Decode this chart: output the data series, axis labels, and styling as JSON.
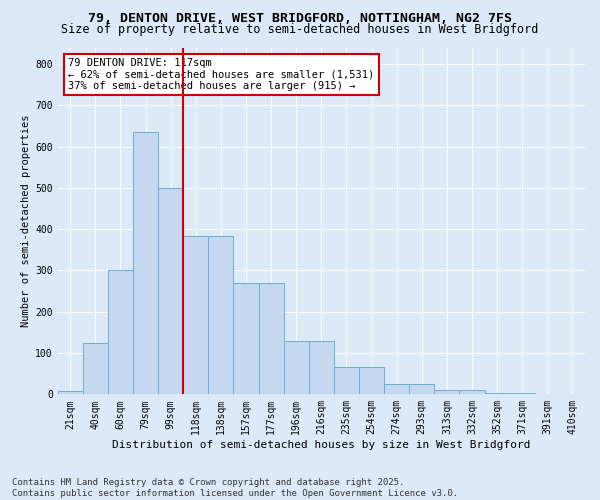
{
  "title_line1": "79, DENTON DRIVE, WEST BRIDGFORD, NOTTINGHAM, NG2 7FS",
  "title_line2": "Size of property relative to semi-detached houses in West Bridgford",
  "xlabel": "Distribution of semi-detached houses by size in West Bridgford",
  "ylabel": "Number of semi-detached properties",
  "categories": [
    "21sqm",
    "40sqm",
    "60sqm",
    "79sqm",
    "99sqm",
    "118sqm",
    "138sqm",
    "157sqm",
    "177sqm",
    "196sqm",
    "216sqm",
    "235sqm",
    "254sqm",
    "274sqm",
    "293sqm",
    "313sqm",
    "332sqm",
    "352sqm",
    "371sqm",
    "391sqm",
    "410sqm"
  ],
  "values": [
    8,
    125,
    300,
    635,
    500,
    383,
    383,
    270,
    270,
    130,
    130,
    65,
    65,
    25,
    25,
    10,
    10,
    3,
    3,
    1,
    1
  ],
  "bar_color": "#c5d8f0",
  "bar_edge_color": "#6baed6",
  "vline_color": "#cc0000",
  "annotation_title": "79 DENTON DRIVE: 117sqm",
  "annotation_line2": "← 62% of semi-detached houses are smaller (1,531)",
  "annotation_line3": "37% of semi-detached houses are larger (915) →",
  "annotation_box_color": "#cc0000",
  "ylim": [
    0,
    840
  ],
  "yticks": [
    0,
    100,
    200,
    300,
    400,
    500,
    600,
    700,
    800
  ],
  "footer_line1": "Contains HM Land Registry data © Crown copyright and database right 2025.",
  "footer_line2": "Contains public sector information licensed under the Open Government Licence v3.0.",
  "bg_color": "#dce9f8",
  "plot_bg_color": "#dce9f8",
  "grid_color": "#ffffff",
  "title_fontsize": 9.5,
  "subtitle_fontsize": 8.5,
  "tick_fontsize": 7,
  "ylabel_fontsize": 7.5,
  "xlabel_fontsize": 8,
  "annotation_fontsize": 7.5,
  "footer_fontsize": 6.5
}
